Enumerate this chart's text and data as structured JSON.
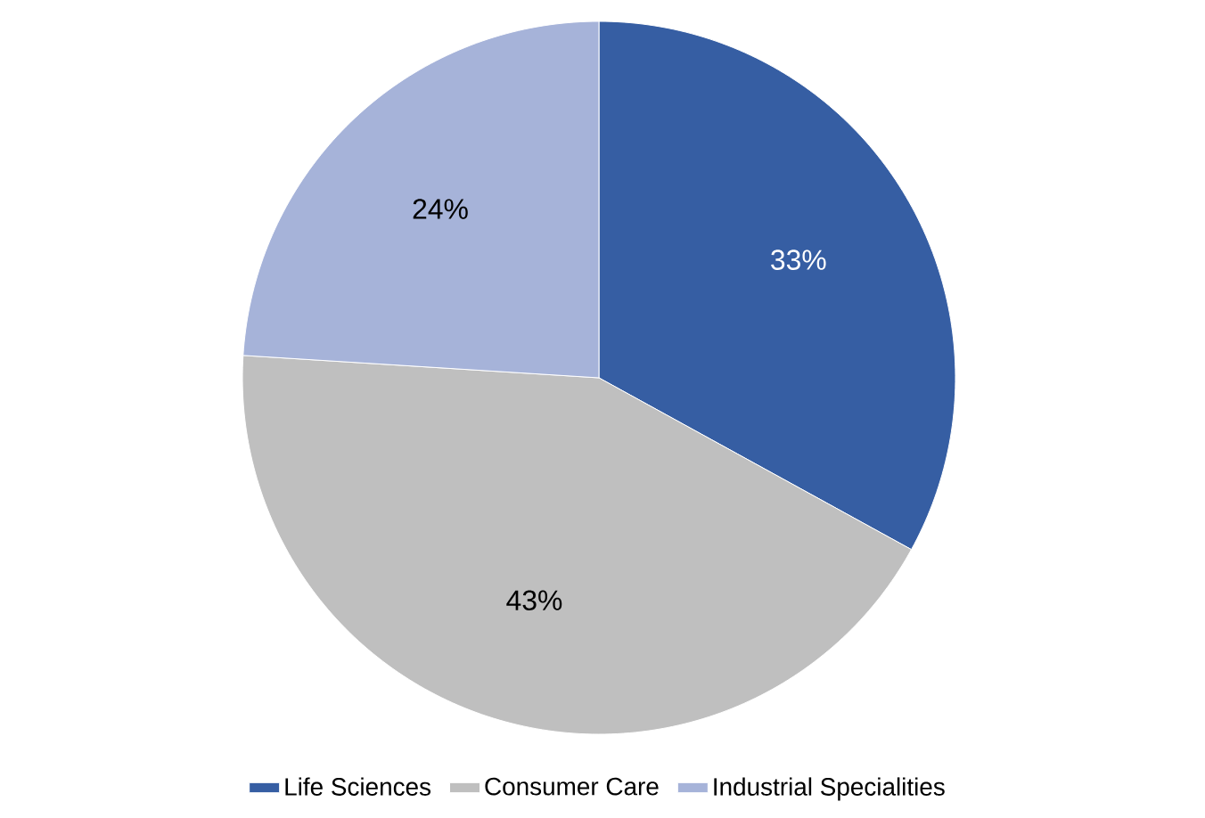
{
  "chart_data": {
    "type": "pie",
    "categories": [
      "Life Sciences",
      "Consumer Care",
      "Industrial Specialities"
    ],
    "values": [
      33,
      43,
      24
    ],
    "value_labels": [
      "33%",
      "43%",
      "24%"
    ],
    "colors": [
      "#365ea3",
      "#bfbfbf",
      "#a6b3d9"
    ],
    "legend": "bottom"
  }
}
